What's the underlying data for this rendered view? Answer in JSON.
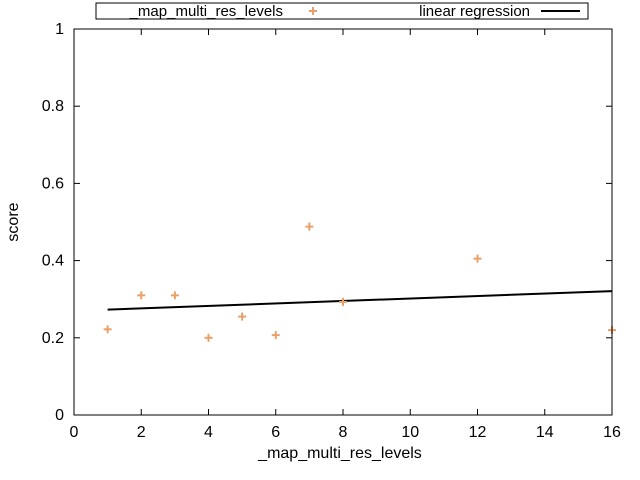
{
  "chart_data": {
    "type": "scatter",
    "xlabel": "_map_multi_res_levels",
    "ylabel": "score",
    "xlim": [
      0,
      16
    ],
    "ylim": [
      0,
      1
    ],
    "x_ticks": [
      "0",
      "2",
      "4",
      "6",
      "8",
      "10",
      "12",
      "14",
      "16"
    ],
    "y_ticks": [
      "0",
      "0.2",
      "0.4",
      "0.6",
      "0.8",
      "1"
    ],
    "grid": false,
    "legend_position": "top",
    "series": [
      {
        "name": "_map_multi_res_levels",
        "type": "scatter",
        "marker": "plus",
        "color": "#e8a06a",
        "points": [
          [
            1,
            0.222
          ],
          [
            2,
            0.31
          ],
          [
            3,
            0.31
          ],
          [
            4,
            0.2
          ],
          [
            5,
            0.255
          ],
          [
            6,
            0.207
          ],
          [
            7,
            0.488
          ],
          [
            8,
            0.293
          ],
          [
            12,
            0.405
          ],
          [
            16,
            0.22
          ]
        ]
      },
      {
        "name": "linear regression",
        "type": "line",
        "color": "#000000",
        "points": [
          [
            1,
            0.273
          ],
          [
            16,
            0.321
          ]
        ]
      }
    ]
  }
}
